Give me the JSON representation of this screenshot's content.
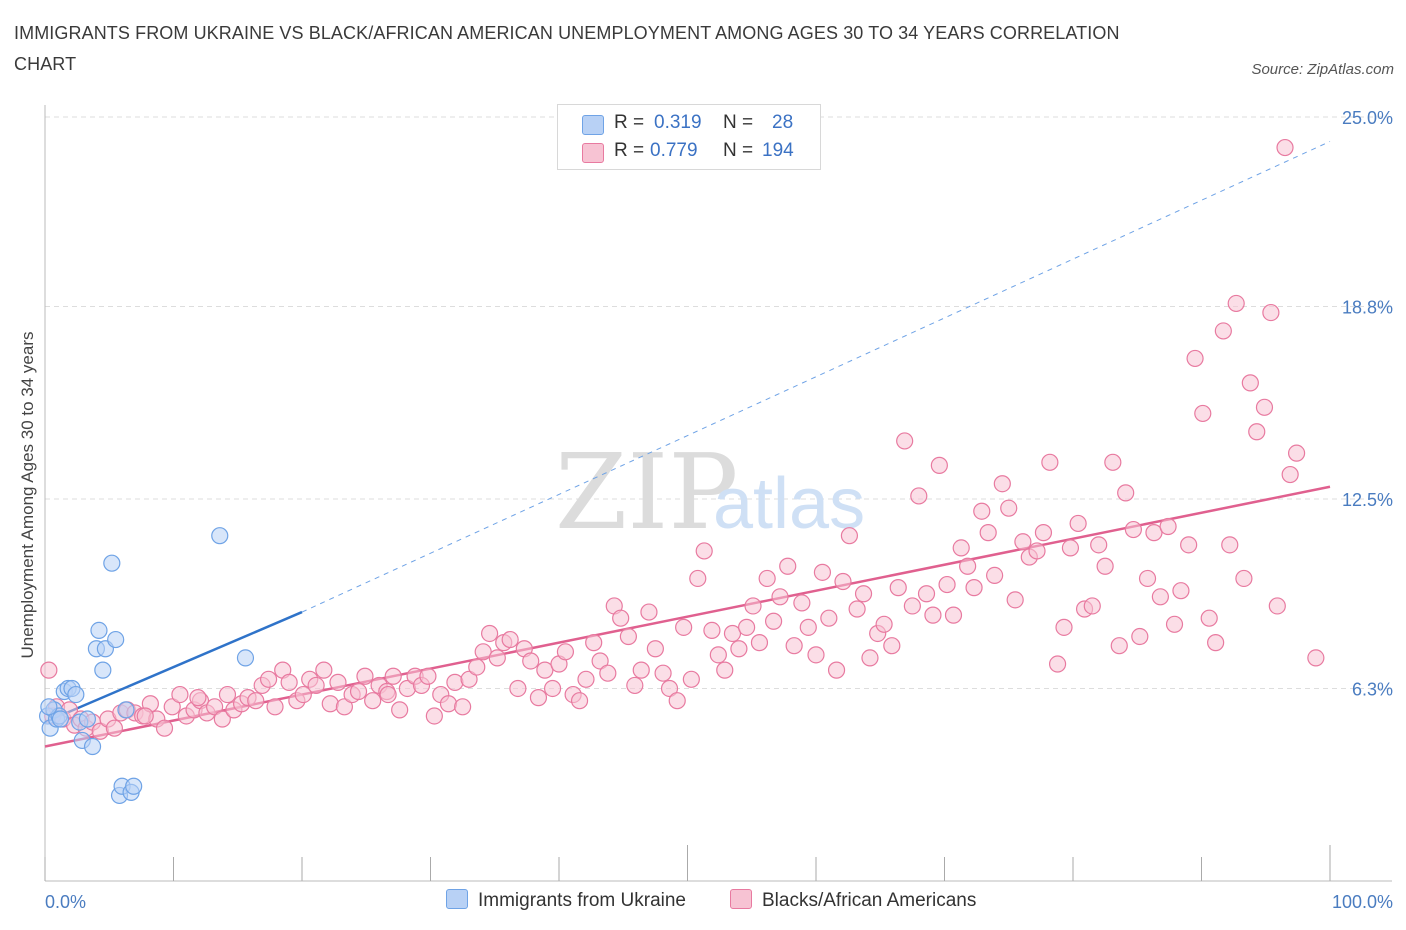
{
  "title": "IMMIGRANTS FROM UKRAINE VS BLACK/AFRICAN AMERICAN UNEMPLOYMENT AMONG AGES 30 TO 34 YEARS CORRELATION CHART",
  "source": "Source: ZipAtlas.com",
  "watermark": {
    "zip": "ZIP",
    "atlas": "atlas"
  },
  "legend": {
    "rows": [
      {
        "r_label": "R =",
        "r_value": "0.319",
        "n_label": "N =",
        "n_value": "28",
        "color": "#b8d1f5"
      },
      {
        "r_label": "R =",
        "r_value": "0.779",
        "n_label": "N =",
        "n_value": "194",
        "color": "#f7c3d3"
      }
    ]
  },
  "chart_data": {
    "type": "scatter",
    "ylabel": "Unemployment Among Ages 30 to 34 years",
    "x_tick_labels": {
      "min": "0.0%",
      "max": "100.0%"
    },
    "y_tick_labels": [
      "6.3%",
      "12.5%",
      "18.8%",
      "25.0%"
    ],
    "y_ticks": [
      6.3,
      12.5,
      18.8,
      25.0
    ],
    "xlim": [
      0,
      100
    ],
    "ylim": [
      0,
      25.0
    ],
    "grid": true,
    "legend_position": "bottom-center",
    "series": [
      {
        "name": "Immigrants from Ukraine",
        "color": "#6fa3e6",
        "fill": "#b8d1f5",
        "trend": {
          "x0": 0.0,
          "y0": 5.2,
          "x1": 20.0,
          "y1": 8.8,
          "dashed_to_x": 100.0,
          "dashed_to_y": 24.2
        },
        "points": [
          [
            0.2,
            5.4
          ],
          [
            0.4,
            5.0
          ],
          [
            0.7,
            5.6
          ],
          [
            0.9,
            5.3
          ],
          [
            1.1,
            5.4
          ],
          [
            1.5,
            6.2
          ],
          [
            1.8,
            6.3
          ],
          [
            2.1,
            6.3
          ],
          [
            2.4,
            6.1
          ],
          [
            2.7,
            5.2
          ],
          [
            2.9,
            4.6
          ],
          [
            3.3,
            5.3
          ],
          [
            3.7,
            4.4
          ],
          [
            4.0,
            7.6
          ],
          [
            4.2,
            8.2
          ],
          [
            4.5,
            6.9
          ],
          [
            4.7,
            7.6
          ],
          [
            5.2,
            10.4
          ],
          [
            5.5,
            7.9
          ],
          [
            5.8,
            2.8
          ],
          [
            6.0,
            3.1
          ],
          [
            6.3,
            5.6
          ],
          [
            6.7,
            2.9
          ],
          [
            6.9,
            3.1
          ],
          [
            13.6,
            11.3
          ],
          [
            15.6,
            7.3
          ],
          [
            0.3,
            5.7
          ],
          [
            1.2,
            5.3
          ]
        ]
      },
      {
        "name": "Blacks/African Americans",
        "color": "#e87aa0",
        "fill": "#f7c3d3",
        "trend": {
          "x0": 0.0,
          "y0": 4.4,
          "x1": 100.0,
          "y1": 12.9
        },
        "points": [
          [
            0.3,
            6.9
          ],
          [
            0.6,
            5.4
          ],
          [
            0.9,
            5.7
          ],
          [
            1.4,
            5.3
          ],
          [
            1.9,
            5.6
          ],
          [
            2.3,
            5.1
          ],
          [
            2.8,
            5.3
          ],
          [
            3.2,
            5.0
          ],
          [
            3.7,
            5.2
          ],
          [
            4.3,
            4.9
          ],
          [
            4.9,
            5.3
          ],
          [
            5.4,
            5.0
          ],
          [
            5.9,
            5.5
          ],
          [
            6.4,
            5.6
          ],
          [
            7.0,
            5.5
          ],
          [
            7.6,
            5.4
          ],
          [
            8.2,
            5.8
          ],
          [
            8.7,
            5.3
          ],
          [
            9.3,
            5.0
          ],
          [
            9.9,
            5.7
          ],
          [
            10.5,
            6.1
          ],
          [
            11.0,
            5.4
          ],
          [
            11.6,
            5.6
          ],
          [
            12.1,
            5.9
          ],
          [
            12.6,
            5.5
          ],
          [
            13.2,
            5.7
          ],
          [
            13.8,
            5.3
          ],
          [
            14.2,
            6.1
          ],
          [
            14.7,
            5.6
          ],
          [
            15.3,
            5.8
          ],
          [
            15.8,
            6.0
          ],
          [
            16.4,
            5.9
          ],
          [
            16.9,
            6.4
          ],
          [
            17.4,
            6.6
          ],
          [
            17.9,
            5.7
          ],
          [
            18.5,
            6.9
          ],
          [
            19.0,
            6.5
          ],
          [
            19.6,
            5.9
          ],
          [
            20.1,
            6.1
          ],
          [
            20.6,
            6.6
          ],
          [
            21.1,
            6.4
          ],
          [
            21.7,
            6.9
          ],
          [
            22.2,
            5.8
          ],
          [
            22.8,
            6.5
          ],
          [
            23.3,
            5.7
          ],
          [
            23.9,
            6.1
          ],
          [
            24.4,
            6.2
          ],
          [
            24.9,
            6.7
          ],
          [
            25.5,
            5.9
          ],
          [
            26.0,
            6.4
          ],
          [
            26.6,
            6.2
          ],
          [
            27.1,
            6.7
          ],
          [
            27.6,
            5.6
          ],
          [
            28.2,
            6.3
          ],
          [
            28.8,
            6.7
          ],
          [
            29.3,
            6.4
          ],
          [
            29.8,
            6.7
          ],
          [
            30.3,
            5.4
          ],
          [
            30.8,
            6.1
          ],
          [
            31.4,
            5.8
          ],
          [
            31.9,
            6.5
          ],
          [
            32.5,
            5.7
          ],
          [
            33.0,
            6.6
          ],
          [
            33.6,
            7.0
          ],
          [
            34.1,
            7.5
          ],
          [
            34.6,
            8.1
          ],
          [
            35.2,
            7.3
          ],
          [
            35.7,
            7.8
          ],
          [
            36.2,
            7.9
          ],
          [
            36.8,
            6.3
          ],
          [
            37.3,
            7.6
          ],
          [
            37.8,
            7.2
          ],
          [
            38.4,
            6.0
          ],
          [
            38.9,
            6.9
          ],
          [
            39.5,
            6.3
          ],
          [
            40.0,
            7.1
          ],
          [
            40.5,
            7.5
          ],
          [
            41.1,
            6.1
          ],
          [
            41.6,
            5.9
          ],
          [
            42.1,
            6.6
          ],
          [
            42.7,
            7.8
          ],
          [
            43.2,
            7.2
          ],
          [
            43.8,
            6.8
          ],
          [
            44.3,
            9.0
          ],
          [
            44.8,
            8.6
          ],
          [
            45.4,
            8.0
          ],
          [
            45.9,
            6.4
          ],
          [
            46.4,
            6.9
          ],
          [
            47.0,
            8.8
          ],
          [
            47.5,
            7.6
          ],
          [
            48.1,
            6.8
          ],
          [
            48.6,
            6.3
          ],
          [
            49.2,
            5.9
          ],
          [
            49.7,
            8.3
          ],
          [
            50.3,
            6.6
          ],
          [
            50.8,
            9.9
          ],
          [
            51.3,
            10.8
          ],
          [
            51.9,
            8.2
          ],
          [
            52.4,
            7.4
          ],
          [
            52.9,
            6.9
          ],
          [
            53.5,
            8.1
          ],
          [
            54.0,
            7.6
          ],
          [
            54.6,
            8.3
          ],
          [
            55.1,
            9.0
          ],
          [
            55.6,
            7.8
          ],
          [
            56.2,
            9.9
          ],
          [
            56.7,
            8.5
          ],
          [
            57.2,
            9.3
          ],
          [
            57.8,
            10.3
          ],
          [
            58.3,
            7.7
          ],
          [
            58.9,
            9.1
          ],
          [
            59.4,
            8.3
          ],
          [
            60.0,
            7.4
          ],
          [
            60.5,
            10.1
          ],
          [
            61.0,
            8.6
          ],
          [
            61.6,
            6.9
          ],
          [
            62.1,
            9.8
          ],
          [
            62.6,
            11.3
          ],
          [
            63.2,
            8.9
          ],
          [
            63.7,
            9.4
          ],
          [
            64.2,
            7.3
          ],
          [
            64.8,
            8.1
          ],
          [
            65.3,
            8.4
          ],
          [
            65.9,
            7.7
          ],
          [
            66.4,
            9.6
          ],
          [
            66.9,
            14.4
          ],
          [
            67.5,
            9.0
          ],
          [
            68.0,
            12.6
          ],
          [
            68.6,
            9.4
          ],
          [
            69.1,
            8.7
          ],
          [
            69.6,
            13.6
          ],
          [
            70.2,
            9.7
          ],
          [
            70.7,
            8.7
          ],
          [
            71.3,
            10.9
          ],
          [
            71.8,
            10.3
          ],
          [
            72.3,
            9.6
          ],
          [
            72.9,
            12.1
          ],
          [
            73.4,
            11.4
          ],
          [
            73.9,
            10.0
          ],
          [
            74.5,
            13.0
          ],
          [
            75.0,
            12.2
          ],
          [
            75.5,
            9.2
          ],
          [
            76.1,
            11.1
          ],
          [
            76.6,
            10.6
          ],
          [
            77.2,
            10.8
          ],
          [
            77.7,
            11.4
          ],
          [
            78.2,
            13.7
          ],
          [
            78.8,
            7.1
          ],
          [
            79.3,
            8.3
          ],
          [
            79.8,
            10.9
          ],
          [
            80.4,
            11.7
          ],
          [
            80.9,
            8.9
          ],
          [
            81.5,
            9.0
          ],
          [
            82.0,
            11.0
          ],
          [
            82.5,
            10.3
          ],
          [
            83.1,
            13.7
          ],
          [
            83.6,
            7.7
          ],
          [
            84.1,
            12.7
          ],
          [
            84.7,
            11.5
          ],
          [
            85.2,
            8.0
          ],
          [
            85.8,
            9.9
          ],
          [
            86.3,
            11.4
          ],
          [
            86.8,
            9.3
          ],
          [
            87.4,
            11.6
          ],
          [
            87.9,
            8.4
          ],
          [
            88.4,
            9.5
          ],
          [
            89.0,
            11.0
          ],
          [
            89.5,
            17.1
          ],
          [
            90.1,
            15.3
          ],
          [
            90.6,
            8.6
          ],
          [
            91.1,
            7.8
          ],
          [
            91.7,
            18.0
          ],
          [
            92.2,
            11.0
          ],
          [
            92.7,
            18.9
          ],
          [
            93.3,
            9.9
          ],
          [
            93.8,
            16.3
          ],
          [
            94.3,
            14.7
          ],
          [
            94.9,
            15.5
          ],
          [
            95.4,
            18.6
          ],
          [
            95.9,
            9.0
          ],
          [
            96.5,
            24.0
          ],
          [
            96.9,
            13.3
          ],
          [
            97.4,
            14.0
          ],
          [
            98.9,
            7.3
          ],
          [
            7.8,
            5.4
          ],
          [
            11.9,
            6.0
          ],
          [
            26.7,
            6.1
          ]
        ]
      }
    ]
  }
}
